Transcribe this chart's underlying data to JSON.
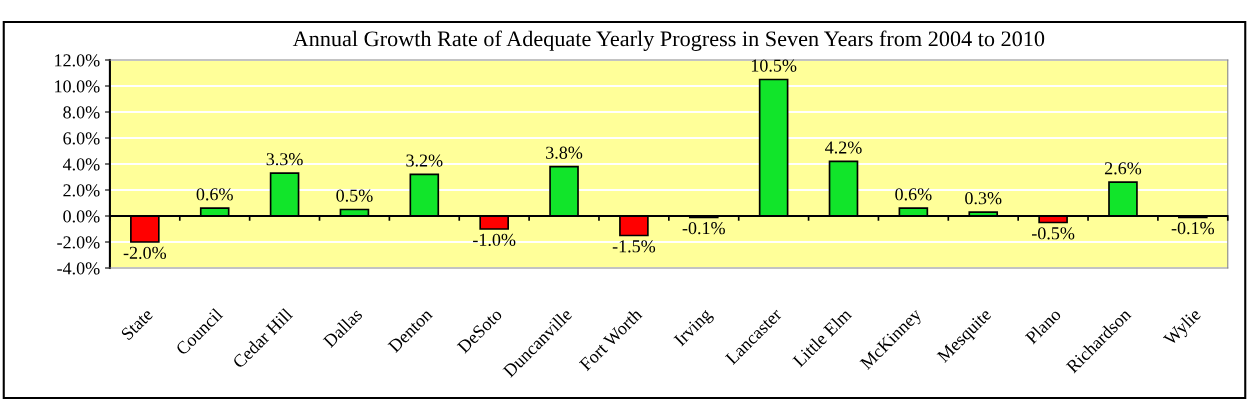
{
  "chart_data": {
    "type": "bar",
    "title": "Annual Growth Rate of Adequate Yearly Progress in Seven Years from 2004 to 2010",
    "categories": [
      "State",
      "Council",
      "Cedar Hill",
      "Dallas",
      "Denton",
      "DeSoto",
      "Duncanville",
      "Fort Worth",
      "Irving",
      "Lancaster",
      "Little Elm",
      "McKinney",
      "Mesquite",
      "Plano",
      "Richardson",
      "Wylie"
    ],
    "values": [
      -2.0,
      0.6,
      3.3,
      0.5,
      3.2,
      -1.0,
      3.8,
      -1.5,
      -0.1,
      10.5,
      4.2,
      0.6,
      0.3,
      -0.5,
      2.6,
      -0.1
    ],
    "value_labels": [
      "-2.0%",
      "0.6%",
      "3.3%",
      "0.5%",
      "3.2%",
      "-1.0%",
      "3.8%",
      "-1.5%",
      "-0.1%",
      "10.5%",
      "4.2%",
      "0.6%",
      "0.3%",
      "-0.5%",
      "2.6%",
      "-0.1%"
    ],
    "colors": [
      "#ff0000",
      "#11e52a",
      "#11e52a",
      "#11e52a",
      "#11e52a",
      "#ff0000",
      "#11e52a",
      "#ff0000",
      "#ff0000",
      "#11e52a",
      "#11e52a",
      "#11e52a",
      "#11e52a",
      "#ff0000",
      "#11e52a",
      "#ff0000"
    ],
    "ylim": [
      -4,
      12
    ],
    "yticks": [
      {
        "value": -4,
        "label": "-4.0%"
      },
      {
        "value": -2,
        "label": "-2.0%"
      },
      {
        "value": 0,
        "label": "0.0%"
      },
      {
        "value": 2,
        "label": "2.0%"
      },
      {
        "value": 4,
        "label": "4.0%"
      },
      {
        "value": 6,
        "label": "6.0%"
      },
      {
        "value": 8,
        "label": "8.0%"
      },
      {
        "value": 10,
        "label": "10.0%"
      },
      {
        "value": 12,
        "label": "12.0%"
      }
    ],
    "grid": "y"
  }
}
